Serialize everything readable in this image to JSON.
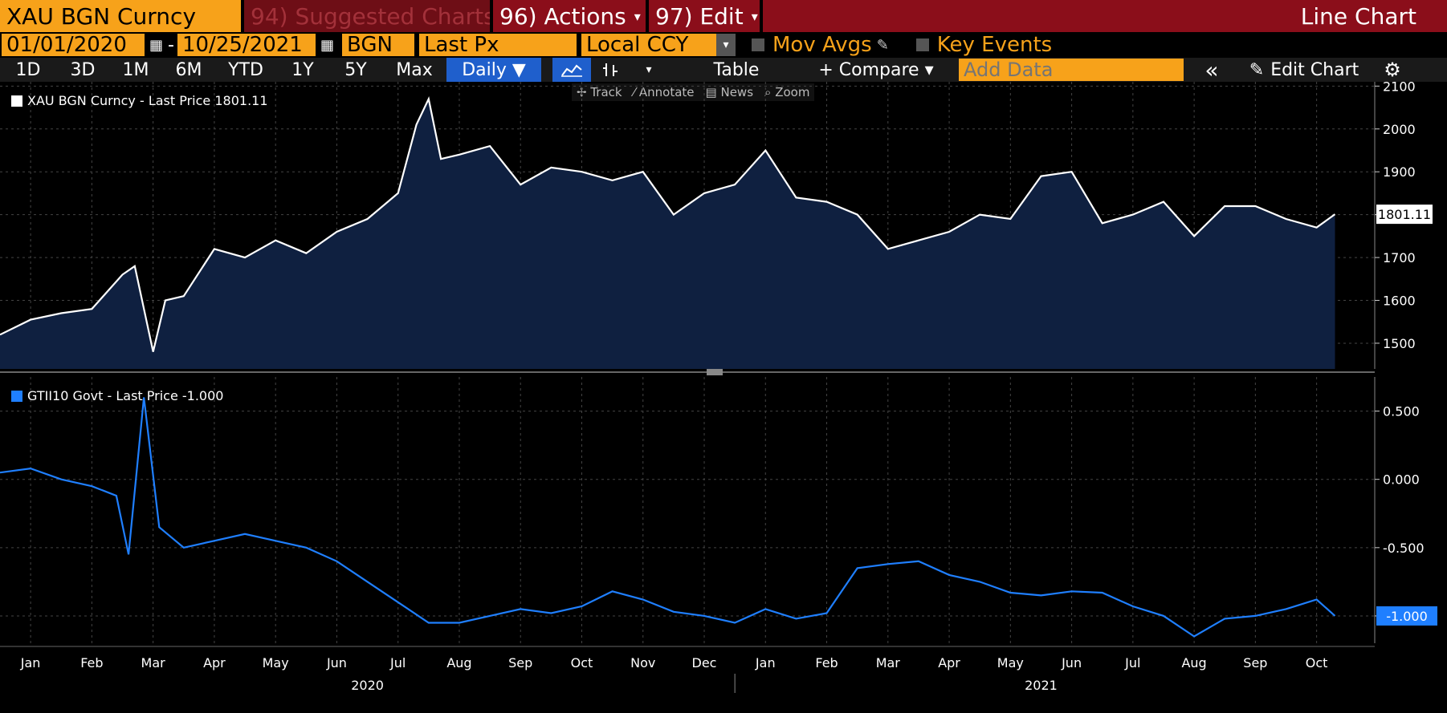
{
  "header": {
    "security": "XAU BGN Curncy",
    "menu_suggested": "94) Suggested Charts",
    "menu_actions": "96) Actions",
    "menu_edit": "97) Edit",
    "chart_type_title": "Line Chart"
  },
  "controls": {
    "start_date": "01/01/2020",
    "end_date": "10/25/2021",
    "dash": "-",
    "source": "BGN",
    "field": "Last Px",
    "currency": "Local CCY",
    "mov_avgs": "Mov Avgs",
    "key_events": "Key Events"
  },
  "toolbar": {
    "ranges": [
      "1D",
      "3D",
      "1M",
      "6M",
      "YTD",
      "1Y",
      "5Y",
      "Max"
    ],
    "period": "Daily ▼",
    "table": "Table",
    "compare": "+ Compare ▾",
    "add_data_placeholder": "Add Data",
    "collapse": "«",
    "edit_chart": "Edit Chart",
    "settings": "⚙"
  },
  "tools": [
    "Track",
    "Annotate",
    "News",
    "Zoom"
  ],
  "colors": {
    "gold_series": "#ffffff",
    "gold_fill": "#0f2040",
    "tips_series": "#1f7fff",
    "orange": "#f7a21a",
    "red": "#8b0e1a"
  },
  "chart_data": [
    {
      "type": "area",
      "legend": "XAU BGN Curncy - Last Price 1801.11",
      "last_value_label": "1801.11",
      "y_ticks": [
        1500,
        1600,
        1700,
        1800,
        1900,
        2000,
        2100
      ],
      "ylim": [
        1440,
        2110
      ],
      "x_months": [
        0,
        0.5,
        1,
        1.5,
        2,
        2.2,
        2.5,
        2.7,
        3,
        3.5,
        4,
        4.5,
        5,
        5.5,
        6,
        6.5,
        6.8,
        7,
        7.2,
        7.5,
        8,
        8.5,
        9,
        9.5,
        10,
        10.5,
        11,
        11.5,
        12,
        12.5,
        13,
        13.5,
        14,
        14.5,
        15,
        15.5,
        16,
        16.5,
        17,
        17.5,
        18,
        18.5,
        19,
        19.5,
        20,
        20.5,
        21,
        21.5,
        21.8
      ],
      "values": [
        1520,
        1555,
        1570,
        1580,
        1660,
        1680,
        1480,
        1600,
        1610,
        1720,
        1700,
        1740,
        1710,
        1760,
        1790,
        1850,
        2010,
        2070,
        1930,
        1940,
        1960,
        1870,
        1910,
        1900,
        1880,
        1900,
        1800,
        1850,
        1870,
        1950,
        1840,
        1830,
        1800,
        1720,
        1740,
        1760,
        1800,
        1790,
        1890,
        1900,
        1780,
        1800,
        1830,
        1750,
        1820,
        1820,
        1790,
        1770,
        1801
      ]
    },
    {
      "type": "line",
      "legend": "GTII10 Govt - Last Price -1.000",
      "last_value_label": "-1.000",
      "y_ticks": [
        -1.0,
        -0.5,
        0.0,
        0.5
      ],
      "ylim": [
        -1.2,
        0.75
      ],
      "x_months": [
        0,
        0.5,
        1,
        1.5,
        1.9,
        2.1,
        2.35,
        2.6,
        3,
        3.5,
        4,
        4.5,
        5,
        5.5,
        6,
        6.5,
        7,
        7.5,
        8,
        8.5,
        9,
        9.5,
        10,
        10.5,
        11,
        11.5,
        12,
        12.5,
        13,
        13.5,
        14,
        14.5,
        15,
        15.5,
        16,
        16.5,
        17,
        17.5,
        18,
        18.5,
        19,
        19.5,
        20,
        20.5,
        21,
        21.5,
        21.8
      ],
      "values": [
        0.05,
        0.08,
        0.0,
        -0.05,
        -0.12,
        -0.55,
        0.6,
        -0.35,
        -0.5,
        -0.45,
        -0.4,
        -0.45,
        -0.5,
        -0.6,
        -0.75,
        -0.9,
        -1.05,
        -1.05,
        -1.0,
        -0.95,
        -0.98,
        -0.93,
        -0.82,
        -0.88,
        -0.97,
        -1.0,
        -1.05,
        -0.95,
        -1.02,
        -0.98,
        -0.65,
        -0.62,
        -0.6,
        -0.7,
        -0.75,
        -0.83,
        -0.85,
        -0.82,
        -0.83,
        -0.93,
        -1.0,
        -1.15,
        -1.02,
        -1.0,
        -0.95,
        -0.88,
        -1.0
      ]
    }
  ],
  "x_axis": {
    "months": [
      "Jan",
      "Feb",
      "Mar",
      "Apr",
      "May",
      "Jun",
      "Jul",
      "Aug",
      "Sep",
      "Oct",
      "Nov",
      "Dec",
      "Jan",
      "Feb",
      "Mar",
      "Apr",
      "May",
      "Jun",
      "Jul",
      "Aug",
      "Sep",
      "Oct"
    ],
    "years": [
      "2020",
      "2021"
    ]
  }
}
